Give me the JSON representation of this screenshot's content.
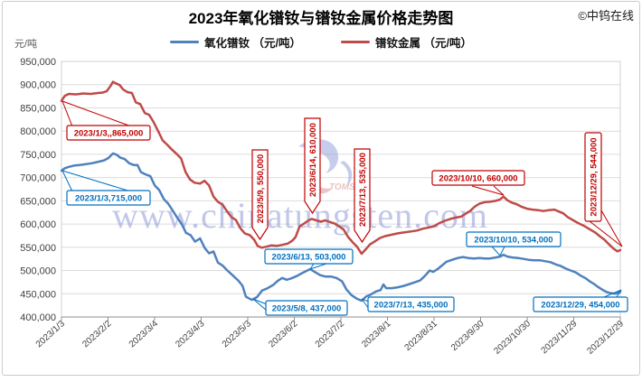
{
  "page": {
    "title": "2023年氧化镨钕与镨钕金属价格走势图",
    "copyright": "©中钨在线",
    "y_axis_unit": "元/吨"
  },
  "legend": {
    "items": [
      {
        "label": "氧化镨钕 （元/吨）",
        "series": "oxide"
      },
      {
        "label": "镨钕金属 （元/吨）",
        "series": "metal"
      }
    ]
  },
  "watermark": {
    "text": "www.chinatungsten.com",
    "logo_text": "TOMS"
  },
  "colors": {
    "oxide_line": "#4f81bd",
    "metal_line": "#be4b48",
    "annotation_blue": "#0070c0",
    "annotation_red": "#c00000",
    "grid": "#dcdcdc",
    "axis": "#8f8f8f",
    "tick_text": "#3f3f3f",
    "watermark": "#8f9bd8"
  },
  "chart_data": {
    "type": "line",
    "title": "2023年氧化镨钕与镨钕金属价格走势图",
    "ylabel": "元/吨",
    "ylim": [
      400000,
      950000
    ],
    "ytick_step": 50000,
    "grid": true,
    "legend_position": "top",
    "y_tick_labels": [
      "400,000",
      "450,000",
      "500,000",
      "550,000",
      "600,000",
      "650,000",
      "700,000",
      "750,000",
      "800,000",
      "850,000",
      "900,000",
      "950,000"
    ],
    "x_tick_labels": [
      "2023/1/3",
      "2023/2/2",
      "2023/3/4",
      "2023/4/3",
      "2023/5/3",
      "2023/6/2",
      "2023/7/2",
      "2023/8/1",
      "2023/8/31",
      "2023/9/30",
      "2023/10/30",
      "2023/11/29",
      "2023/12/29"
    ],
    "series": [
      {
        "name": "氧化镨钕 （元/吨）",
        "key": "oxide",
        "color": "#4f81bd",
        "points": [
          [
            0,
            715000
          ],
          [
            0.006,
            720000
          ],
          [
            0.013,
            723000
          ],
          [
            0.023,
            726000
          ],
          [
            0.032,
            727000
          ],
          [
            0.044,
            729000
          ],
          [
            0.055,
            731000
          ],
          [
            0.066,
            734000
          ],
          [
            0.076,
            737000
          ],
          [
            0.084,
            742000
          ],
          [
            0.092,
            752000
          ],
          [
            0.099,
            749000
          ],
          [
            0.105,
            743000
          ],
          [
            0.113,
            740000
          ],
          [
            0.121,
            731000
          ],
          [
            0.129,
            727000
          ],
          [
            0.136,
            727000
          ],
          [
            0.142,
            712000
          ],
          [
            0.15,
            707000
          ],
          [
            0.159,
            703000
          ],
          [
            0.167,
            683000
          ],
          [
            0.175,
            673000
          ],
          [
            0.183,
            654000
          ],
          [
            0.191,
            644000
          ],
          [
            0.199,
            629000
          ],
          [
            0.207,
            614000
          ],
          [
            0.215,
            600000
          ],
          [
            0.223,
            581000
          ],
          [
            0.231,
            576000
          ],
          [
            0.239,
            562000
          ],
          [
            0.248,
            569000
          ],
          [
            0.256,
            549000
          ],
          [
            0.264,
            537000
          ],
          [
            0.272,
            541000
          ],
          [
            0.28,
            517000
          ],
          [
            0.288,
            511000
          ],
          [
            0.296,
            501000
          ],
          [
            0.306,
            490000
          ],
          [
            0.316,
            479000
          ],
          [
            0.324,
            467000
          ],
          [
            0.33,
            444000
          ],
          [
            0.337,
            439000
          ],
          [
            0.341,
            437000
          ],
          [
            0.35,
            443000
          ],
          [
            0.359,
            457000
          ],
          [
            0.369,
            462000
          ],
          [
            0.379,
            469000
          ],
          [
            0.387,
            478000
          ],
          [
            0.395,
            484000
          ],
          [
            0.403,
            480000
          ],
          [
            0.411,
            483000
          ],
          [
            0.421,
            488000
          ],
          [
            0.43,
            494000
          ],
          [
            0.438,
            499000
          ],
          [
            0.445,
            503000
          ],
          [
            0.453,
            497000
          ],
          [
            0.463,
            490000
          ],
          [
            0.472,
            487000
          ],
          [
            0.482,
            487000
          ],
          [
            0.492,
            484000
          ],
          [
            0.502,
            477000
          ],
          [
            0.51,
            459000
          ],
          [
            0.519,
            447000
          ],
          [
            0.529,
            439000
          ],
          [
            0.537,
            435000
          ],
          [
            0.545,
            444000
          ],
          [
            0.553,
            448000
          ],
          [
            0.563,
            455000
          ],
          [
            0.571,
            458000
          ],
          [
            0.576,
            470000
          ],
          [
            0.581,
            462000
          ],
          [
            0.591,
            462000
          ],
          [
            0.602,
            464000
          ],
          [
            0.613,
            467000
          ],
          [
            0.623,
            471000
          ],
          [
            0.633,
            475000
          ],
          [
            0.642,
            479000
          ],
          [
            0.65,
            488000
          ],
          [
            0.659,
            500000
          ],
          [
            0.665,
            497000
          ],
          [
            0.673,
            503000
          ],
          [
            0.681,
            511000
          ],
          [
            0.689,
            519000
          ],
          [
            0.699,
            523000
          ],
          [
            0.709,
            527000
          ],
          [
            0.718,
            529000
          ],
          [
            0.728,
            527000
          ],
          [
            0.738,
            526000
          ],
          [
            0.748,
            527000
          ],
          [
            0.757,
            526000
          ],
          [
            0.767,
            526000
          ],
          [
            0.777,
            528000
          ],
          [
            0.785,
            530000
          ],
          [
            0.791,
            534000
          ],
          [
            0.798,
            530000
          ],
          [
            0.807,
            528000
          ],
          [
            0.817,
            527000
          ],
          [
            0.827,
            525000
          ],
          [
            0.836,
            523000
          ],
          [
            0.846,
            522000
          ],
          [
            0.856,
            522000
          ],
          [
            0.866,
            520000
          ],
          [
            0.875,
            518000
          ],
          [
            0.885,
            513000
          ],
          [
            0.893,
            510000
          ],
          [
            0.901,
            505000
          ],
          [
            0.911,
            500000
          ],
          [
            0.92,
            496000
          ],
          [
            0.929,
            489000
          ],
          [
            0.937,
            484000
          ],
          [
            0.945,
            477000
          ],
          [
            0.953,
            471000
          ],
          [
            0.961,
            464000
          ],
          [
            0.969,
            458000
          ],
          [
            0.977,
            453000
          ],
          [
            0.985,
            451000
          ],
          [
            0.992,
            450000
          ],
          [
            1,
            454000
          ]
        ]
      },
      {
        "name": "镨钕金属 （元/吨）",
        "key": "metal",
        "color": "#be4b48",
        "points": [
          [
            0,
            865000
          ],
          [
            0.006,
            876000
          ],
          [
            0.013,
            880000
          ],
          [
            0.026,
            879000
          ],
          [
            0.039,
            881000
          ],
          [
            0.052,
            880000
          ],
          [
            0.065,
            882000
          ],
          [
            0.074,
            883000
          ],
          [
            0.081,
            886000
          ],
          [
            0.087,
            896000
          ],
          [
            0.092,
            906000
          ],
          [
            0.097,
            903000
          ],
          [
            0.104,
            899000
          ],
          [
            0.11,
            890000
          ],
          [
            0.118,
            884000
          ],
          [
            0.126,
            882000
          ],
          [
            0.133,
            862000
          ],
          [
            0.141,
            858000
          ],
          [
            0.149,
            839000
          ],
          [
            0.157,
            835000
          ],
          [
            0.165,
            819000
          ],
          [
            0.173,
            800000
          ],
          [
            0.181,
            780000
          ],
          [
            0.189,
            771000
          ],
          [
            0.197,
            761000
          ],
          [
            0.206,
            751000
          ],
          [
            0.214,
            741000
          ],
          [
            0.222,
            712000
          ],
          [
            0.23,
            696000
          ],
          [
            0.238,
            689000
          ],
          [
            0.248,
            687000
          ],
          [
            0.256,
            693000
          ],
          [
            0.264,
            683000
          ],
          [
            0.272,
            659000
          ],
          [
            0.28,
            648000
          ],
          [
            0.288,
            642000
          ],
          [
            0.296,
            628000
          ],
          [
            0.304,
            615000
          ],
          [
            0.312,
            609000
          ],
          [
            0.32,
            591000
          ],
          [
            0.328,
            580000
          ],
          [
            0.337,
            576000
          ],
          [
            0.345,
            566000
          ],
          [
            0.351,
            553000
          ],
          [
            0.358,
            549000
          ],
          [
            0.366,
            551000
          ],
          [
            0.375,
            554000
          ],
          [
            0.385,
            553000
          ],
          [
            0.395,
            555000
          ],
          [
            0.405,
            558000
          ],
          [
            0.413,
            564000
          ],
          [
            0.419,
            572000
          ],
          [
            0.426,
            595000
          ],
          [
            0.434,
            601000
          ],
          [
            0.442,
            608000
          ],
          [
            0.448,
            611000
          ],
          [
            0.456,
            608000
          ],
          [
            0.464,
            605000
          ],
          [
            0.472,
            608000
          ],
          [
            0.481,
            604000
          ],
          [
            0.489,
            601000
          ],
          [
            0.497,
            595000
          ],
          [
            0.505,
            588000
          ],
          [
            0.513,
            572000
          ],
          [
            0.521,
            561000
          ],
          [
            0.529,
            551000
          ],
          [
            0.537,
            536000
          ],
          [
            0.544,
            545000
          ],
          [
            0.552,
            556000
          ],
          [
            0.56,
            562000
          ],
          [
            0.57,
            570000
          ],
          [
            0.579,
            574000
          ],
          [
            0.591,
            577000
          ],
          [
            0.602,
            580000
          ],
          [
            0.613,
            582000
          ],
          [
            0.625,
            584000
          ],
          [
            0.636,
            586000
          ],
          [
            0.647,
            590000
          ],
          [
            0.659,
            593000
          ],
          [
            0.668,
            596000
          ],
          [
            0.676,
            602000
          ],
          [
            0.686,
            607000
          ],
          [
            0.696,
            611000
          ],
          [
            0.706,
            614000
          ],
          [
            0.715,
            616000
          ],
          [
            0.723,
            622000
          ],
          [
            0.731,
            628000
          ],
          [
            0.739,
            637000
          ],
          [
            0.748,
            644000
          ],
          [
            0.757,
            647000
          ],
          [
            0.767,
            648000
          ],
          [
            0.777,
            650000
          ],
          [
            0.785,
            653000
          ],
          [
            0.791,
            659000
          ],
          [
            0.798,
            651000
          ],
          [
            0.806,
            646000
          ],
          [
            0.814,
            643000
          ],
          [
            0.824,
            637000
          ],
          [
            0.833,
            633000
          ],
          [
            0.843,
            631000
          ],
          [
            0.853,
            630000
          ],
          [
            0.862,
            628000
          ],
          [
            0.872,
            630000
          ],
          [
            0.882,
            631000
          ],
          [
            0.89,
            627000
          ],
          [
            0.898,
            623000
          ],
          [
            0.906,
            615000
          ],
          [
            0.916,
            608000
          ],
          [
            0.925,
            602000
          ],
          [
            0.935,
            596000
          ],
          [
            0.945,
            589000
          ],
          [
            0.955,
            582000
          ],
          [
            0.964,
            573000
          ],
          [
            0.972,
            566000
          ],
          [
            0.98,
            556000
          ],
          [
            0.988,
            547000
          ],
          [
            0.995,
            541000
          ],
          [
            1,
            544000
          ]
        ]
      }
    ],
    "annotations": [
      {
        "text": "2023/1/3,,865,000",
        "series": "metal",
        "color": "red"
      },
      {
        "text": "2023/1/3,715,000",
        "series": "oxide",
        "color": "blue"
      },
      {
        "text": "2023/5/9, 550,000",
        "series": "metal",
        "color": "red"
      },
      {
        "text": "2023/6/14, 610,000",
        "series": "metal",
        "color": "red"
      },
      {
        "text": "2023/7/13, 535,000",
        "series": "metal",
        "color": "red"
      },
      {
        "text": "2023/10/10, 660,000",
        "series": "metal",
        "color": "red"
      },
      {
        "text": "2023/12/29, 544,000",
        "series": "metal",
        "color": "red"
      },
      {
        "text": "2023/5/8, 437,000",
        "series": "oxide",
        "color": "blue"
      },
      {
        "text": "2023/6/13, 503,000",
        "series": "oxide",
        "color": "blue"
      },
      {
        "text": "2023/7/13, 435,000",
        "series": "oxide",
        "color": "blue"
      },
      {
        "text": "2023/10/10, 534,000",
        "series": "oxide",
        "color": "blue"
      },
      {
        "text": "2023/12/29, 454,000",
        "series": "oxide",
        "color": "blue"
      }
    ]
  }
}
